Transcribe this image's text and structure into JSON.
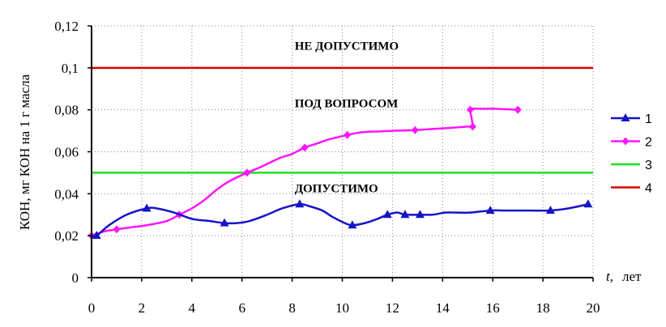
{
  "chart_data": {
    "type": "line",
    "title": "",
    "xlabel_symbol": "t,",
    "xlabel_unit": "лет",
    "ylabel": "КОН, мг КОН на 1 г масла",
    "xlim": [
      0,
      20
    ],
    "ylim": [
      0,
      0.12
    ],
    "x_ticks": [
      0,
      2,
      4,
      6,
      8,
      10,
      12,
      14,
      16,
      18,
      20
    ],
    "y_ticks": [
      0,
      0.02,
      0.04,
      0.06,
      0.08,
      0.1,
      0.12
    ],
    "y_tick_labels": [
      "0",
      "0,02",
      "0,04",
      "0,06",
      "0,08",
      "0,1",
      "0,12"
    ],
    "grid": "dotted",
    "legend_position": "right",
    "zone_labels": [
      {
        "text": "НЕ ДОПУСТИМО",
        "x": 8.1,
        "y": 0.111
      },
      {
        "text": "ПОД ВОПРОСОМ",
        "x": 8.1,
        "y": 0.0835
      },
      {
        "text": "ДОПУСТИМО",
        "x": 8.1,
        "y": 0.043
      }
    ],
    "series": [
      {
        "name": "1",
        "color": "#1414c8",
        "marker": "triangle",
        "x": [
          0,
          0.2,
          0.7,
          1.4,
          2.2,
          2.6,
          3.3,
          4,
          4.7,
          5.3,
          5.8,
          6.3,
          7,
          7.6,
          8.3,
          8.7,
          9.2,
          9.6,
          10.1,
          10.4,
          10.9,
          11.4,
          11.8,
          12.2,
          12.5,
          13.1,
          13.6,
          14.1,
          14.6,
          15.1,
          15.9,
          16.5,
          17.2,
          18.3,
          19,
          19.8
        ],
        "y": [
          0.02,
          0.02,
          0.025,
          0.03,
          0.033,
          0.033,
          0.031,
          0.028,
          0.027,
          0.026,
          0.026,
          0.027,
          0.03,
          0.033,
          0.035,
          0.034,
          0.032,
          0.029,
          0.026,
          0.025,
          0.026,
          0.028,
          0.03,
          0.031,
          0.03,
          0.03,
          0.03,
          0.031,
          0.031,
          0.031,
          0.032,
          0.032,
          0.032,
          0.032,
          0.033,
          0.035
        ],
        "markers_x": [
          0.2,
          2.2,
          5.3,
          8.3,
          10.4,
          11.8,
          12.5,
          13.1,
          15.9,
          18.3,
          19.8
        ],
        "markers_y": [
          0.02,
          0.033,
          0.026,
          0.035,
          0.025,
          0.03,
          0.03,
          0.03,
          0.032,
          0.032,
          0.035
        ]
      },
      {
        "name": "2",
        "color": "#ff14ff",
        "marker": "diamond",
        "x": [
          0,
          0.5,
          1,
          1.6,
          2.2,
          3,
          3.5,
          4,
          4.5,
          5,
          5.5,
          6.2,
          6.8,
          7.5,
          8,
          8.5,
          9,
          9.5,
          10.2,
          10.6,
          11,
          11.5,
          12,
          12.9,
          13.5,
          14.2,
          15,
          15.2,
          15.1,
          15.2,
          15.6,
          16.1,
          17
        ],
        "y": [
          0.02,
          0.022,
          0.023,
          0.024,
          0.025,
          0.027,
          0.03,
          0.033,
          0.037,
          0.042,
          0.046,
          0.05,
          0.053,
          0.057,
          0.059,
          0.062,
          0.064,
          0.066,
          0.068,
          0.069,
          0.0695,
          0.0697,
          0.07,
          0.0703,
          0.0708,
          0.0713,
          0.072,
          0.072,
          0.08,
          0.0805,
          0.0805,
          0.0805,
          0.08
        ],
        "markers_x": [
          0,
          1,
          3.5,
          6.2,
          8.5,
          10.2,
          12.9,
          15.1,
          15.2,
          17
        ],
        "markers_y": [
          0.02,
          0.023,
          0.03,
          0.05,
          0.062,
          0.068,
          0.0703,
          0.08,
          0.072,
          0.08
        ]
      },
      {
        "name": "3",
        "color": "#22dd22",
        "marker": "none",
        "x": [
          0,
          20
        ],
        "y": [
          0.05,
          0.05
        ]
      },
      {
        "name": "4",
        "color": "#dd0000",
        "marker": "none",
        "x": [
          0,
          20
        ],
        "y": [
          0.1,
          0.1
        ]
      }
    ]
  }
}
